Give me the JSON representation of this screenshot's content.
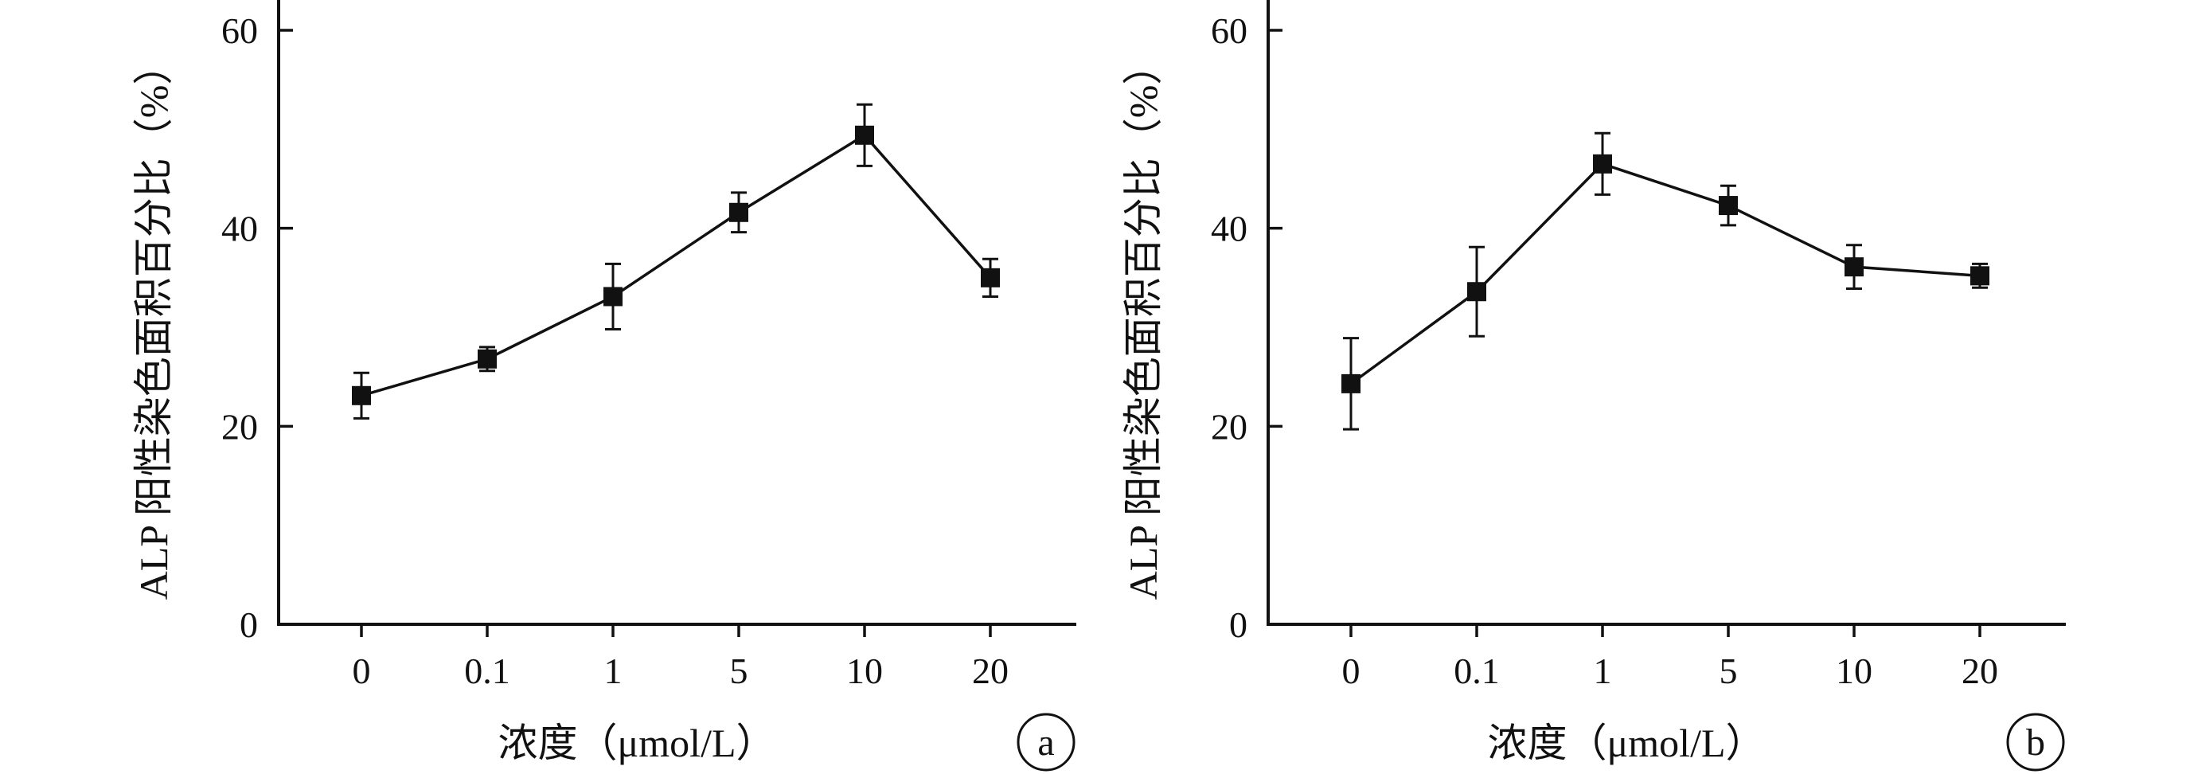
{
  "chart_data": [
    {
      "type": "line",
      "panel_label": "a",
      "categories": [
        "0",
        "0.1",
        "1",
        "5",
        "10",
        "20"
      ],
      "series": [
        {
          "values": [
            23.1,
            26.8,
            33.1,
            41.6,
            49.4,
            35.0
          ],
          "errors": [
            2.3,
            1.2,
            3.3,
            2.0,
            3.1,
            1.9
          ]
        }
      ],
      "xlabel": "浓度（μmol/L）",
      "ylabel": "ALP 阳性染色面积百分比（%）",
      "ylim": [
        0,
        60
      ],
      "yticks": [
        "0",
        "20",
        "40",
        "60"
      ],
      "marker": "square",
      "grid": false
    },
    {
      "type": "line",
      "panel_label": "b",
      "categories": [
        "0",
        "0.1",
        "1",
        "5",
        "10",
        "20"
      ],
      "series": [
        {
          "values": [
            24.3,
            33.6,
            46.5,
            42.3,
            36.1,
            35.2
          ],
          "errors": [
            4.6,
            4.5,
            3.1,
            2.0,
            2.2,
            1.2
          ]
        }
      ],
      "xlabel": "浓度（μmol/L）",
      "ylabel": "ALP 阳性染色面积百分比（%）",
      "ylim": [
        0,
        60
      ],
      "yticks": [
        "0",
        "20",
        "40",
        "60"
      ],
      "marker": "square",
      "grid": false
    }
  ],
  "colors": {
    "ink": "#111111"
  }
}
